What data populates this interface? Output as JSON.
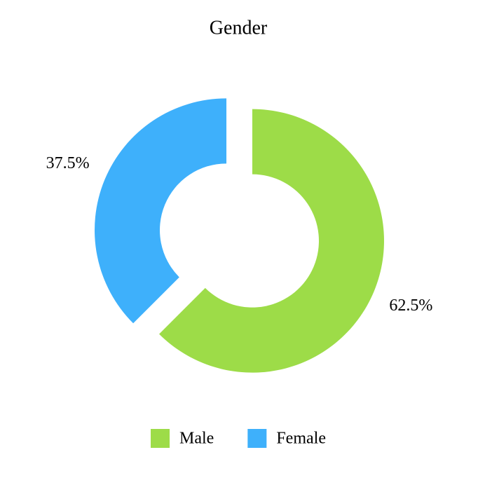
{
  "chart_data": {
    "type": "donut",
    "title": "Gender",
    "categories": [
      "Male",
      "Female"
    ],
    "values": [
      62.5,
      37.5
    ],
    "value_labels": [
      "62.5%",
      "37.5%"
    ],
    "colors": [
      "#9ddc48",
      "#3eb0fb"
    ],
    "legend": "bottom"
  }
}
